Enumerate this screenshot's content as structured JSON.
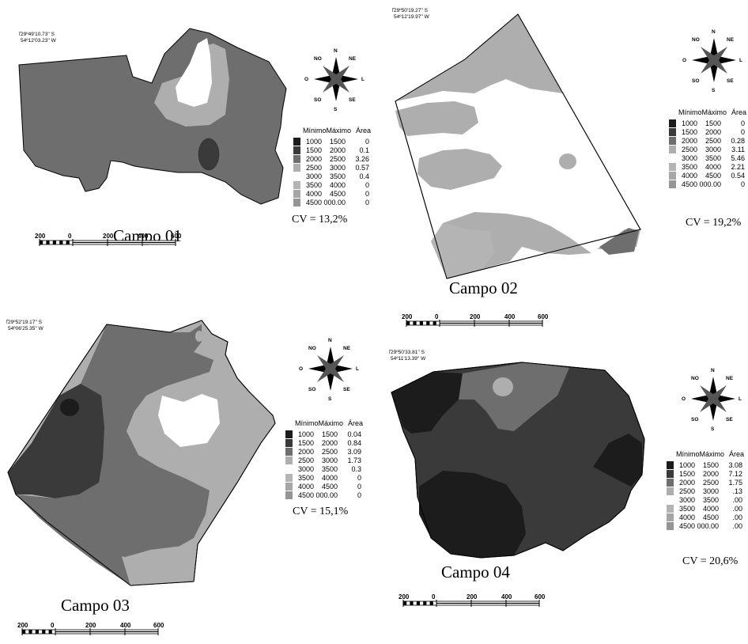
{
  "legend_header": {
    "min": "Mínimo",
    "max": "Máximo",
    "area": "Área"
  },
  "legend_colors": [
    "#1c1c1c",
    "#3a3a3a",
    "#6e6e6e",
    "#aeaeae",
    "#ffffff",
    "#b4b4b4",
    "#a6a6a6",
    "#959595"
  ],
  "compass": {
    "n": "N",
    "s": "S",
    "o": "O",
    "l": "L",
    "ne": "NE",
    "no": "NO",
    "se": "SE",
    "so": "SO"
  },
  "scale_labels": [
    "200",
    "0",
    "200",
    "400",
    "600"
  ],
  "campos": [
    {
      "title": "Campo 01",
      "cv": "CV = 13,2%",
      "coord_lat": "29º49'10.73'' S",
      "coord_lon": "54º12'03.23'' W",
      "legend": [
        {
          "min": "1000",
          "max": "1500",
          "area": "0"
        },
        {
          "min": "1500",
          "max": "2000",
          "area": "0.1"
        },
        {
          "min": "2000",
          "max": "2500",
          "area": "3.26"
        },
        {
          "min": "2500",
          "max": "3000",
          "area": "0.57"
        },
        {
          "min": "3000",
          "max": "3500",
          "area": "0.4"
        },
        {
          "min": "3500",
          "max": "4000",
          "area": "0"
        },
        {
          "min": "4000",
          "max": "4500",
          "area": "0"
        },
        {
          "min": "4500",
          "max": "000.00",
          "area": "0"
        }
      ]
    },
    {
      "title": "Campo 02",
      "cv": "CV = 19,2%",
      "coord_lat": "29º50'19.27'' S",
      "coord_lon": "54º12'19.97'' W",
      "legend": [
        {
          "min": "1000",
          "max": "1500",
          "area": "0"
        },
        {
          "min": "1500",
          "max": "2000",
          "area": "0"
        },
        {
          "min": "2000",
          "max": "2500",
          "area": "0.28"
        },
        {
          "min": "2500",
          "max": "3000",
          "area": "3.11"
        },
        {
          "min": "3000",
          "max": "3500",
          "area": "5.46"
        },
        {
          "min": "3500",
          "max": "4000",
          "area": "2.21"
        },
        {
          "min": "4000",
          "max": "4500",
          "area": "0.54"
        },
        {
          "min": "4500",
          "max": "000.00",
          "area": "0"
        }
      ]
    },
    {
      "title": "Campo 03",
      "cv": "CV = 15,1%",
      "coord_lat": "29º52'19.17'' S",
      "coord_lon": "54º06'25.35'' W",
      "legend": [
        {
          "min": "1000",
          "max": "1500",
          "area": "0.04"
        },
        {
          "min": "1500",
          "max": "2000",
          "area": "0.84"
        },
        {
          "min": "2000",
          "max": "2500",
          "area": "3.09"
        },
        {
          "min": "2500",
          "max": "3000",
          "area": "1.73"
        },
        {
          "min": "3000",
          "max": "3500",
          "area": "0.3"
        },
        {
          "min": "3500",
          "max": "4000",
          "area": "0"
        },
        {
          "min": "4000",
          "max": "4500",
          "area": "0"
        },
        {
          "min": "4500",
          "max": "000.00",
          "area": "0"
        }
      ]
    },
    {
      "title": "Campo 04",
      "cv": "CV = 20,6%",
      "coord_lat": "29º50'33.81'' S",
      "coord_lon": "54º11'13.39'' W",
      "legend": [
        {
          "min": "1000",
          "max": "1500",
          "area": "3.08"
        },
        {
          "min": "1500",
          "max": "2000",
          "area": "7.12"
        },
        {
          "min": "2000",
          "max": "2500",
          "area": "1.75"
        },
        {
          "min": "2500",
          "max": "3000",
          "area": ".13"
        },
        {
          "min": "3000",
          "max": "3500",
          "area": ".00"
        },
        {
          "min": "3500",
          "max": "4000",
          "area": ".00"
        },
        {
          "min": "4000",
          "max": "4500",
          "area": ".00"
        },
        {
          "min": "4500",
          "max": "000.00",
          "area": ".00"
        }
      ]
    }
  ]
}
